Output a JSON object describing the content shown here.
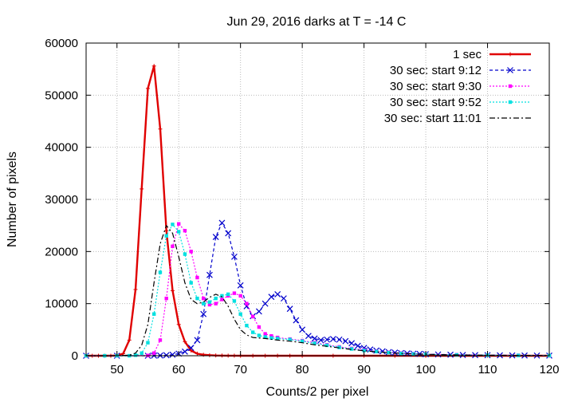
{
  "chart_data": {
    "type": "line",
    "title": "Jun 29, 2016 darks at T = -14 C",
    "xlabel": "Counts/2 per pixel",
    "ylabel": "Number of pixels",
    "xlim": [
      45,
      120
    ],
    "ylim": [
      0,
      60000
    ],
    "xticks": [
      50,
      60,
      70,
      80,
      90,
      100,
      110,
      120
    ],
    "yticks": [
      0,
      10000,
      20000,
      30000,
      40000,
      50000,
      60000
    ],
    "grid": true,
    "legend_position": "top-right",
    "series": [
      {
        "name": "1 sec",
        "color": "#e00000",
        "marker": "plus",
        "dash": "solid",
        "x": [
          45,
          46,
          47,
          48,
          49,
          50,
          51,
          52,
          53,
          54,
          55,
          56,
          57,
          58,
          59,
          60,
          61,
          62,
          63,
          64,
          65,
          66,
          67,
          68,
          69,
          70,
          72,
          74,
          76,
          78,
          80,
          85,
          90,
          95,
          100,
          110,
          120
        ],
        "y": [
          0,
          0,
          0,
          0,
          0,
          50,
          400,
          3000,
          12700,
          32000,
          51300,
          55600,
          43500,
          24000,
          12500,
          6000,
          2700,
          1000,
          400,
          200,
          100,
          50,
          30,
          20,
          10,
          0,
          0,
          0,
          0,
          0,
          0,
          0,
          0,
          0,
          0,
          0,
          0
        ]
      },
      {
        "name": "30 sec: start 9:12",
        "color": "#0000cc",
        "marker": "x",
        "dash": "dashed",
        "x": [
          45,
          50,
          55,
          56,
          57,
          58,
          59,
          60,
          61,
          62,
          63,
          64,
          65,
          66,
          67,
          68,
          69,
          70,
          71,
          72,
          73,
          74,
          75,
          76,
          77,
          78,
          79,
          80,
          81,
          82,
          83,
          84,
          85,
          86,
          87,
          88,
          89,
          90,
          91,
          92,
          93,
          94,
          95,
          96,
          97,
          98,
          99,
          100,
          102,
          104,
          106,
          108,
          110,
          112,
          114,
          116,
          118,
          120
        ],
        "y": [
          0,
          0,
          0,
          30,
          50,
          100,
          200,
          400,
          800,
          1500,
          3000,
          8000,
          15500,
          22800,
          25500,
          23500,
          19000,
          13500,
          9500,
          7600,
          8500,
          10000,
          11300,
          11800,
          11000,
          9000,
          6800,
          5000,
          3800,
          3300,
          3000,
          3100,
          3200,
          3100,
          2800,
          2400,
          1900,
          1500,
          1200,
          1000,
          850,
          700,
          600,
          500,
          450,
          400,
          350,
          300,
          250,
          200,
          150,
          120,
          100,
          80,
          60,
          50,
          40,
          30
        ]
      },
      {
        "name": "30 sec: start 9:30",
        "color": "#ff00ff",
        "marker": "filled-square",
        "dash": "dotted",
        "x": [
          45,
          50,
          55,
          56,
          57,
          58,
          59,
          60,
          61,
          62,
          63,
          64,
          65,
          66,
          67,
          68,
          69,
          70,
          71,
          72,
          73,
          74,
          75,
          76,
          78,
          80,
          82,
          84,
          86,
          88,
          90,
          92,
          94,
          96,
          98,
          100,
          105,
          110,
          115,
          120
        ],
        "y": [
          0,
          0,
          50,
          500,
          3000,
          11000,
          21000,
          25300,
          24000,
          20000,
          15000,
          11000,
          9800,
          10000,
          10800,
          11500,
          12000,
          11500,
          10000,
          7500,
          5500,
          4200,
          3800,
          3500,
          3200,
          2900,
          2500,
          2100,
          1700,
          1400,
          1100,
          850,
          650,
          500,
          400,
          300,
          200,
          120,
          80,
          50
        ]
      },
      {
        "name": "30 sec: start 9:52",
        "color": "#00e0e0",
        "marker": "filled-square",
        "dash": "dotted",
        "x": [
          45,
          48,
          50,
          52,
          53,
          54,
          55,
          56,
          57,
          58,
          59,
          60,
          61,
          62,
          63,
          64,
          65,
          66,
          67,
          68,
          69,
          70,
          71,
          72,
          73,
          74,
          75,
          76,
          78,
          80,
          82,
          84,
          86,
          88,
          90,
          92,
          94,
          96,
          98,
          100,
          105,
          110,
          115,
          120
        ],
        "y": [
          0,
          0,
          0,
          0,
          100,
          500,
          2500,
          8000,
          16000,
          23000,
          25200,
          23800,
          19500,
          14000,
          11000,
          10000,
          10300,
          11000,
          11500,
          11800,
          10500,
          8000,
          5800,
          4500,
          3900,
          3600,
          3400,
          3300,
          3100,
          2800,
          2400,
          2000,
          1600,
          1300,
          1000,
          800,
          600,
          450,
          350,
          280,
          160,
          100,
          60,
          40
        ]
      },
      {
        "name": "30 sec: start 11:01",
        "color": "#000000",
        "marker": "none",
        "dash": "dash-dot",
        "x": [
          45,
          48,
          50,
          52,
          53,
          54,
          55,
          56,
          57,
          58,
          59,
          60,
          61,
          62,
          63,
          64,
          65,
          66,
          67,
          68,
          69,
          70,
          71,
          72,
          74,
          76,
          78,
          80,
          82,
          84,
          86,
          88,
          90,
          92,
          94,
          96,
          98,
          100,
          105,
          110,
          115,
          120
        ],
        "y": [
          0,
          0,
          0,
          100,
          500,
          2000,
          6000,
          14000,
          21500,
          25000,
          23500,
          19000,
          14000,
          10800,
          10000,
          10300,
          11200,
          11800,
          11300,
          9500,
          7000,
          5000,
          4000,
          3500,
          3300,
          3000,
          2800,
          2500,
          2100,
          1800,
          1500,
          1200,
          950,
          750,
          580,
          450,
          350,
          280,
          160,
          100,
          60,
          40
        ]
      }
    ]
  }
}
